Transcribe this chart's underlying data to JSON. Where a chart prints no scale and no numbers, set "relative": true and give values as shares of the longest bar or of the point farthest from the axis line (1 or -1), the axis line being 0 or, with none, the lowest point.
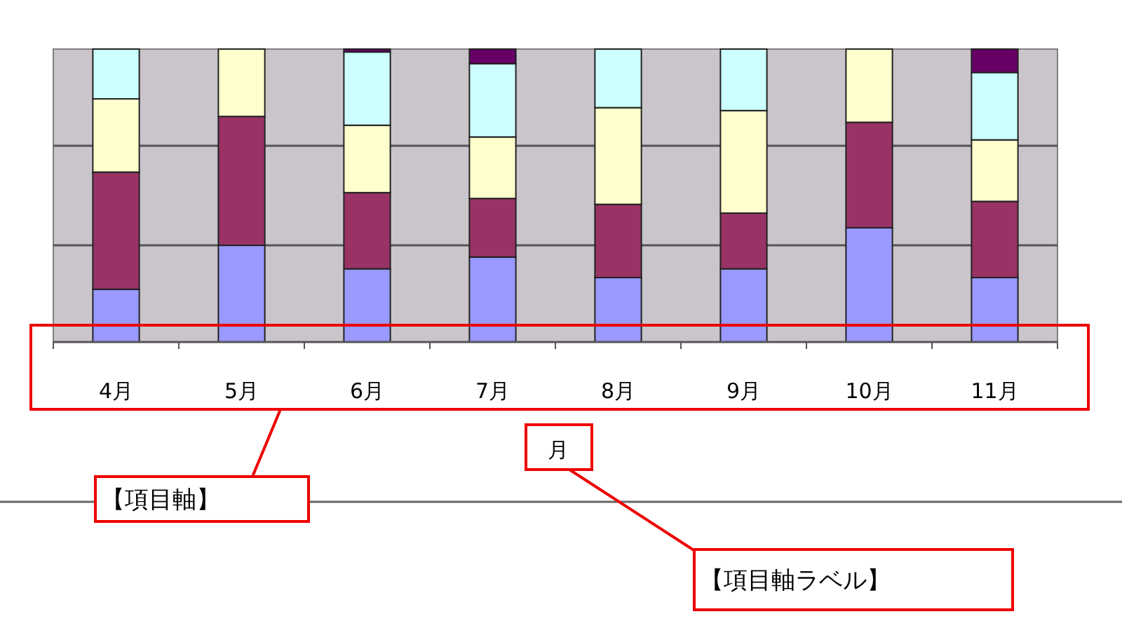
{
  "chart_data": {
    "type": "bar",
    "stacked": true,
    "relative": true,
    "legend": false,
    "tick_labels": "x",
    "xlabel": "月",
    "ref_lines": [
      {
        "axis": "y",
        "value": 0.33,
        "color": "#555555"
      },
      {
        "axis": "y",
        "value": 0.67,
        "color": "#555555"
      }
    ],
    "categories": [
      "4月",
      "5月",
      "6月",
      "7月",
      "8月",
      "9月",
      "10月",
      "11月"
    ],
    "series": [
      {
        "color": "#9999ff",
        "values": [
          0.18,
          0.33,
          0.25,
          0.29,
          0.22,
          0.25,
          0.39,
          0.22
        ]
      },
      {
        "color": "#993366",
        "values": [
          0.4,
          0.44,
          0.26,
          0.2,
          0.25,
          0.19,
          0.36,
          0.26
        ]
      },
      {
        "color": "#ffffcc",
        "values": [
          0.25,
          0.23,
          0.23,
          0.21,
          0.33,
          0.35,
          0.25,
          0.21
        ]
      },
      {
        "color": "#ccffff",
        "values": [
          0.17,
          0,
          0.25,
          0.25,
          0.2,
          0.21,
          0,
          0.23
        ]
      },
      {
        "color": "#660066",
        "values": [
          0,
          0,
          0.01,
          0.05,
          0,
          0,
          0,
          0.08
        ]
      }
    ],
    "annotations": [
      "【項目軸】",
      "【項目軸ラベル】"
    ]
  }
}
